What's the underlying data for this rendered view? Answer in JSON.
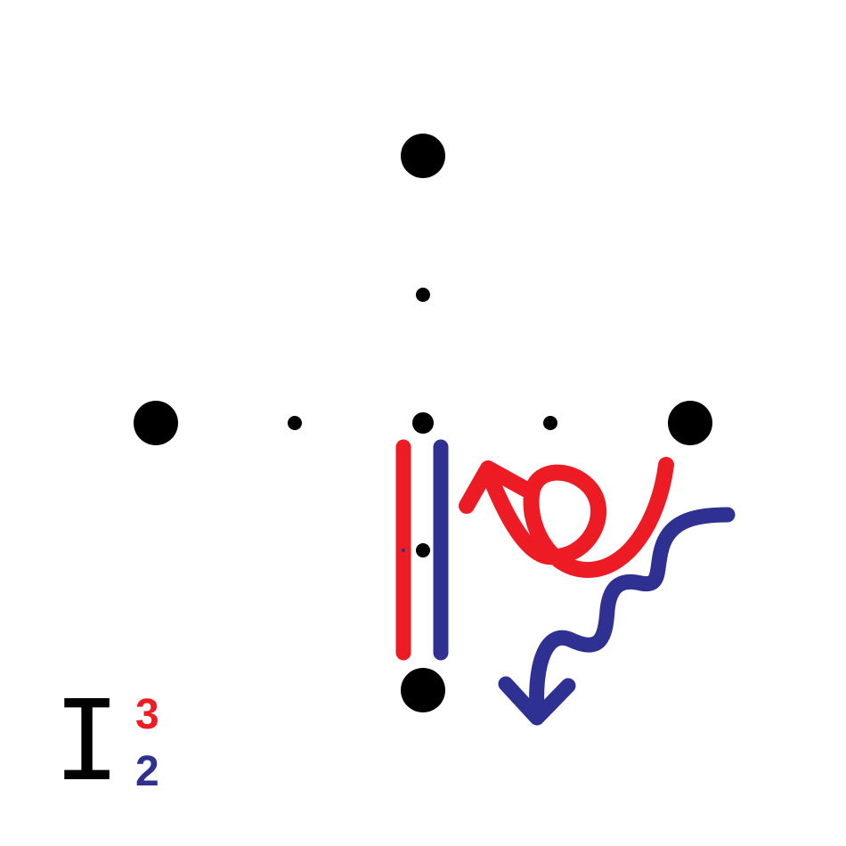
{
  "colors": {
    "background": "#ffffff",
    "dots": "#000000",
    "red": "#ed1c24",
    "blue": "#2e3192"
  },
  "label": {
    "main": "I",
    "superscript": "3",
    "subscript": "2"
  },
  "elements": {
    "dots": [
      "large-dot",
      "small-dot"
    ],
    "bars": [
      "red-bar",
      "blue-bar"
    ],
    "arrows": [
      "red-curly-arrow",
      "blue-wavy-arrow"
    ]
  }
}
